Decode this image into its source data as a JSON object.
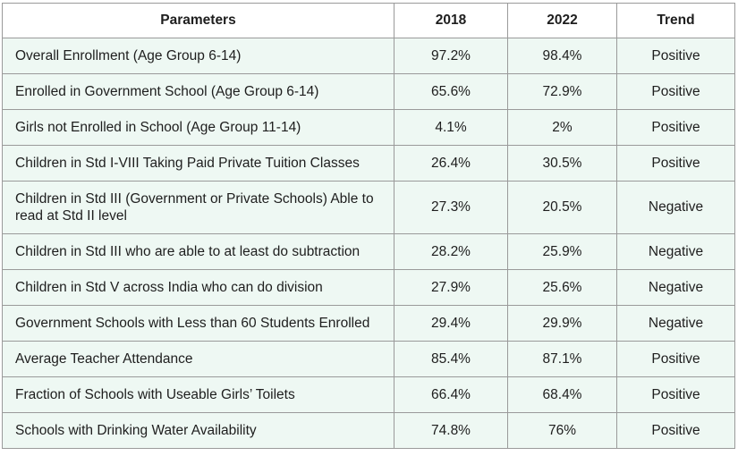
{
  "table": {
    "headers": [
      "Parameters",
      "2018",
      "2022",
      "Trend"
    ],
    "rows": [
      {
        "parameter": "Overall Enrollment (Age Group 6-14)",
        "y2018": "97.2%",
        "y2022": "98.4%",
        "trend": "Positive"
      },
      {
        "parameter": "Enrolled in Government School (Age Group 6-14)",
        "y2018": "65.6%",
        "y2022": "72.9%",
        "trend": "Positive"
      },
      {
        "parameter": "Girls not Enrolled in School (Age Group 11-14)",
        "y2018": "4.1%",
        "y2022": "2%",
        "trend": "Positive"
      },
      {
        "parameter": "Children in Std I-VIII Taking Paid Private Tuition Classes",
        "y2018": "26.4%",
        "y2022": "30.5%",
        "trend": "Positive"
      },
      {
        "parameter": "Children in Std III (Government or Private Schools) Able to read at Std II level",
        "y2018": "27.3%",
        "y2022": "20.5%",
        "trend": "Negative"
      },
      {
        "parameter": "Children in Std III who are able to at least do subtraction",
        "y2018": "28.2%",
        "y2022": "25.9%",
        "trend": "Negative"
      },
      {
        "parameter": "Children in Std V across India who can do division",
        "y2018": "27.9%",
        "y2022": "25.6%",
        "trend": "Negative"
      },
      {
        "parameter": "Government Schools with Less than 60 Students Enrolled",
        "y2018": "29.4%",
        "y2022": "29.9%",
        "trend": "Negative"
      },
      {
        "parameter": "Average Teacher Attendance",
        "y2018": "85.4%",
        "y2022": "87.1%",
        "trend": "Positive"
      },
      {
        "parameter": "Fraction of Schools with Useable Girls’ Toilets",
        "y2018": "66.4%",
        "y2022": "68.4%",
        "trend": "Positive"
      },
      {
        "parameter": "Schools with Drinking Water Availability",
        "y2018": "74.8%",
        "y2022": "76%",
        "trend": "Positive"
      }
    ]
  },
  "colors": {
    "row_background": "#eef8f3",
    "border": "#9a9a9a",
    "text": "#1e1e1e"
  }
}
